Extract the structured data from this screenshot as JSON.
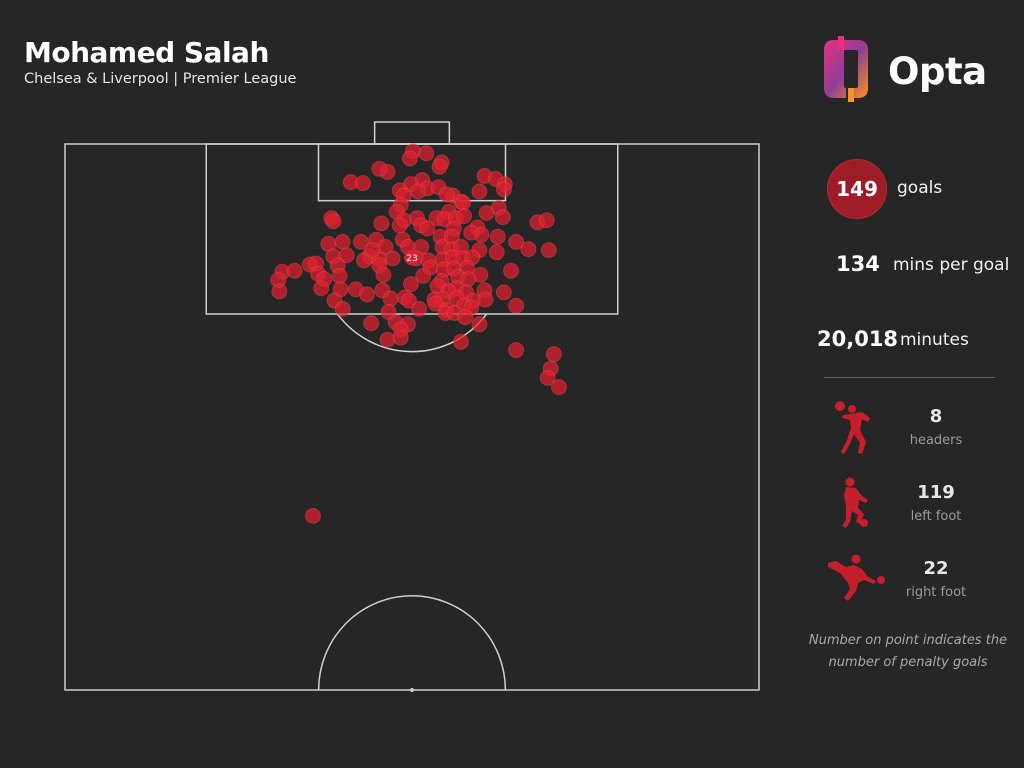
{
  "header": {
    "title": "Mohamed Salah",
    "subtitle": "Chelsea & Liverpool | Premier League"
  },
  "logo": {
    "text": "Opta",
    "colors": [
      "#e8317f",
      "#f7941d",
      "#8f3d97"
    ]
  },
  "stats": {
    "goals": {
      "value": "149",
      "label": "goals"
    },
    "mins_per_goal": {
      "value": "134",
      "label": "mins per goal"
    },
    "minutes": {
      "value": "20,018",
      "label": "minutes"
    }
  },
  "goal_types": [
    {
      "icon": "header-player-icon",
      "value": "8",
      "label": "headers"
    },
    {
      "icon": "left-foot-player-icon",
      "value": "119",
      "label": "left foot"
    },
    {
      "icon": "right-foot-player-icon",
      "value": "22",
      "label": "right foot"
    }
  ],
  "note": "Number on point indicates the number of penalty goals",
  "colors": {
    "background": "#262626",
    "shot": "#e0202e",
    "accent": "#9e1c26",
    "lines": "#cfcfcf"
  },
  "chart_data": {
    "type": "scatter",
    "description_of_axes": "x = metres from left touchline (0-68), y = metres from goal line (0-53)",
    "xlim": [
      0,
      68
    ],
    "ylim": [
      0,
      53
    ],
    "grid": false,
    "penalty_point": {
      "x": 34,
      "y": 11,
      "label": "23"
    },
    "points": [
      [
        34.1,
        0.7
      ],
      [
        35.4,
        0.9
      ],
      [
        33.8,
        1.4
      ],
      [
        36.9,
        1.8
      ],
      [
        31.6,
        2.7
      ],
      [
        36.7,
        2.2
      ],
      [
        30.8,
        2.4
      ],
      [
        41.1,
        3.1
      ],
      [
        42.2,
        3.4
      ],
      [
        43.1,
        3.9
      ],
      [
        35.0,
        3.5
      ],
      [
        33.9,
        3.9
      ],
      [
        28.0,
        3.7
      ],
      [
        29.2,
        3.8
      ],
      [
        35.5,
        4.3
      ],
      [
        34.6,
        4.6
      ],
      [
        36.6,
        4.2
      ],
      [
        32.8,
        4.5
      ],
      [
        43.0,
        4.4
      ],
      [
        40.6,
        4.6
      ],
      [
        38.0,
        5.0
      ],
      [
        37.4,
        4.9
      ],
      [
        33.2,
        5.0
      ],
      [
        38.8,
        5.6
      ],
      [
        39.0,
        5.7
      ],
      [
        32.9,
        5.9
      ],
      [
        42.5,
        6.2
      ],
      [
        42.9,
        7.1
      ],
      [
        41.3,
        6.7
      ],
      [
        37.6,
        6.6
      ],
      [
        32.5,
        6.6
      ],
      [
        34.5,
        7.2
      ],
      [
        33.2,
        7.4
      ],
      [
        36.4,
        7.2
      ],
      [
        37.2,
        7.3
      ],
      [
        38.3,
        7.2
      ],
      [
        39.1,
        7.0
      ],
      [
        26.1,
        7.2
      ],
      [
        26.3,
        7.5
      ],
      [
        31.0,
        7.7
      ],
      [
        32.8,
        7.9
      ],
      [
        34.9,
        7.9
      ],
      [
        46.3,
        7.6
      ],
      [
        47.2,
        7.4
      ],
      [
        35.5,
        8.2
      ],
      [
        38.1,
        8.2
      ],
      [
        40.4,
        8.1
      ],
      [
        40.8,
        8.8
      ],
      [
        42.4,
        9.0
      ],
      [
        44.2,
        9.5
      ],
      [
        30.5,
        9.3
      ],
      [
        33.1,
        9.3
      ],
      [
        36.8,
        9.0
      ],
      [
        37.9,
        9.0
      ],
      [
        39.8,
        8.6
      ],
      [
        25.8,
        9.7
      ],
      [
        27.2,
        9.5
      ],
      [
        29.0,
        9.5
      ],
      [
        31.4,
        10.0
      ],
      [
        33.6,
        10.0
      ],
      [
        34.9,
        10.0
      ],
      [
        37.0,
        10.0
      ],
      [
        37.9,
        10.2
      ],
      [
        38.8,
        10.0
      ],
      [
        40.6,
        10.3
      ],
      [
        42.3,
        10.5
      ],
      [
        45.4,
        10.2
      ],
      [
        47.4,
        10.3
      ],
      [
        26.3,
        10.9
      ],
      [
        27.6,
        10.8
      ],
      [
        29.8,
        10.9
      ],
      [
        30.8,
        11.2
      ],
      [
        32.1,
        11.1
      ],
      [
        34.4,
        11.1
      ],
      [
        35.6,
        11.3
      ],
      [
        37.0,
        11.2
      ],
      [
        38.0,
        11.0
      ],
      [
        39.0,
        11.1
      ],
      [
        39.9,
        11.0
      ],
      [
        24.0,
        11.7
      ],
      [
        24.6,
        11.6
      ],
      [
        26.7,
        11.8
      ],
      [
        29.3,
        11.3
      ],
      [
        30.8,
        11.8
      ],
      [
        35.8,
        12.0
      ],
      [
        37.1,
        12.2
      ],
      [
        38.1,
        12.1
      ],
      [
        39.4,
        12.0
      ],
      [
        40.7,
        12.7
      ],
      [
        43.7,
        12.3
      ],
      [
        21.3,
        12.4
      ],
      [
        22.5,
        12.3
      ],
      [
        24.8,
        12.6
      ],
      [
        26.9,
        12.8
      ],
      [
        31.2,
        12.7
      ],
      [
        35.1,
        12.8
      ],
      [
        36.9,
        13.3
      ],
      [
        38.5,
        12.9
      ],
      [
        39.5,
        13.1
      ],
      [
        20.9,
        13.2
      ],
      [
        25.4,
        13.1
      ],
      [
        33.9,
        13.6
      ],
      [
        36.5,
        13.8
      ],
      [
        38.3,
        14.0
      ],
      [
        21.0,
        14.3
      ],
      [
        25.1,
        14.0
      ],
      [
        27.0,
        14.1
      ],
      [
        28.5,
        14.1
      ],
      [
        31.1,
        14.2
      ],
      [
        37.6,
        14.3
      ],
      [
        39.3,
        14.4
      ],
      [
        41.1,
        14.2
      ],
      [
        43.0,
        14.4
      ],
      [
        29.6,
        14.6
      ],
      [
        33.3,
        14.9
      ],
      [
        36.2,
        15.1
      ],
      [
        37.0,
        15.0
      ],
      [
        38.4,
        15.0
      ],
      [
        40.0,
        15.2
      ],
      [
        41.2,
        15.1
      ],
      [
        26.4,
        15.2
      ],
      [
        31.9,
        15.0
      ],
      [
        33.7,
        15.2
      ],
      [
        36.3,
        15.5
      ],
      [
        39.1,
        15.7
      ],
      [
        39.8,
        15.9
      ],
      [
        44.2,
        15.7
      ],
      [
        27.2,
        16.0
      ],
      [
        31.7,
        16.3
      ],
      [
        34.7,
        16.0
      ],
      [
        37.4,
        16.1
      ],
      [
        37.3,
        16.4
      ],
      [
        38.2,
        16.4
      ],
      [
        39.2,
        16.8
      ],
      [
        30.0,
        17.4
      ],
      [
        32.4,
        17.3
      ],
      [
        33.6,
        17.5
      ],
      [
        32.9,
        18.0
      ],
      [
        40.6,
        17.5
      ],
      [
        31.6,
        19.0
      ],
      [
        32.9,
        18.8
      ],
      [
        38.8,
        19.2
      ],
      [
        44.2,
        20.0
      ],
      [
        47.9,
        20.4
      ],
      [
        47.6,
        21.8
      ],
      [
        47.3,
        22.7
      ],
      [
        48.4,
        23.6
      ],
      [
        24.3,
        36.1
      ],
      [
        30.1,
        10.3
      ]
    ]
  }
}
